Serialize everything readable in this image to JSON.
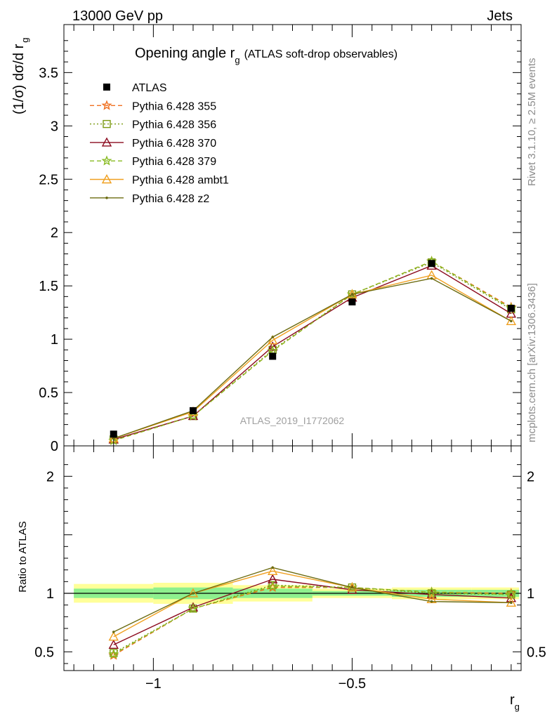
{
  "header": {
    "left": "13000 GeV pp",
    "right": "Jets"
  },
  "side_text": {
    "rivet": "Rivet 3.1.10, ≥ 2.5M events",
    "mcplots": "mcplots.cern.ch [arXiv:1306.3436]"
  },
  "watermark": "ATLAS_2019_I1772062",
  "chart_data": [
    {
      "type": "line",
      "title_main": "Opening angle r",
      "title_sub": "g",
      "title_extra": "(ATLAS soft-drop observables)",
      "ylabel_main": "(1/σ) dσ/d r",
      "ylabel_sub": "g",
      "xlim": [
        -1.225,
        -0.075
      ],
      "ylim": [
        0,
        3.95
      ],
      "yticks": [
        "0",
        "0.5",
        "1",
        "1.5",
        "2",
        "2.5",
        "3",
        "3.5"
      ],
      "x": [
        -1.1,
        -0.9,
        -0.7,
        -0.5,
        -0.3,
        -0.1
      ],
      "data": {
        "name": "ATLAS",
        "values": [
          0.11,
          0.33,
          0.84,
          1.35,
          1.71,
          1.29
        ],
        "xerr_edges": [
          -1.2,
          -1.0,
          -0.8,
          -0.6,
          -0.4,
          -0.2,
          -0.1
        ]
      },
      "legend": {
        "placement": "top-left"
      },
      "series": [
        {
          "name": "Pythia 6.428 355",
          "color": "#f07020",
          "dash": "6,4",
          "marker": "star",
          "values": [
            0.05,
            0.28,
            0.89,
            1.42,
            1.73,
            1.3
          ]
        },
        {
          "name": "Pythia 6.428 356",
          "color": "#7a9a10",
          "dash": "2,3",
          "marker": "square-open",
          "values": [
            0.06,
            0.28,
            0.9,
            1.42,
            1.72,
            1.28
          ]
        },
        {
          "name": "Pythia 6.428 370",
          "color": "#8b0a1e",
          "dash": "",
          "marker": "tri-open",
          "values": [
            0.06,
            0.28,
            0.93,
            1.39,
            1.69,
            1.24
          ]
        },
        {
          "name": "Pythia 6.428 379",
          "color": "#88bb22",
          "dash": "6,4",
          "marker": "star",
          "values": [
            0.05,
            0.28,
            0.89,
            1.42,
            1.73,
            1.29
          ]
        },
        {
          "name": "Pythia 6.428 ambt1",
          "color": "#f0a020",
          "dash": "",
          "marker": "tri-open",
          "values": [
            0.07,
            0.32,
            0.99,
            1.42,
            1.6,
            1.17
          ]
        },
        {
          "name": "Pythia 6.428 z2",
          "color": "#6b6b10",
          "dash": "",
          "marker": "dot",
          "values": [
            0.07,
            0.33,
            1.02,
            1.42,
            1.57,
            1.17
          ]
        }
      ]
    },
    {
      "type": "line",
      "ylabel": "Ratio to ATLAS",
      "xlabel_main": "r",
      "xlabel_sub": "g",
      "xlim": [
        -1.225,
        -0.075
      ],
      "ylim": [
        0.34,
        2.26
      ],
      "yticks": [
        "0.5",
        "1",
        "2"
      ],
      "xticks": [
        "−1",
        "−0.5"
      ],
      "bands": {
        "inner": [
          0.04,
          0.05,
          0.04,
          0.02,
          0.03,
          0.03
        ],
        "outer": [
          0.08,
          0.09,
          0.07,
          0.04,
          0.05,
          0.05
        ]
      },
      "series": [
        {
          "name": "Pythia 6.428 355",
          "values": [
            0.47,
            0.87,
            1.05,
            1.05,
            1.01,
            1.0
          ]
        },
        {
          "name": "Pythia 6.428 356",
          "values": [
            0.49,
            0.87,
            1.07,
            1.05,
            1.0,
            0.99
          ]
        },
        {
          "name": "Pythia 6.428 370",
          "values": [
            0.56,
            0.88,
            1.12,
            1.03,
            0.99,
            0.96
          ]
        },
        {
          "name": "Pythia 6.428 379",
          "values": [
            0.48,
            0.87,
            1.06,
            1.05,
            1.01,
            0.99
          ]
        },
        {
          "name": "Pythia 6.428 ambt1",
          "values": [
            0.63,
            1.0,
            1.19,
            1.05,
            0.95,
            0.92
          ]
        },
        {
          "name": "Pythia 6.428 z2",
          "values": [
            0.67,
            1.0,
            1.22,
            1.05,
            0.93,
            0.92
          ]
        }
      ]
    }
  ]
}
